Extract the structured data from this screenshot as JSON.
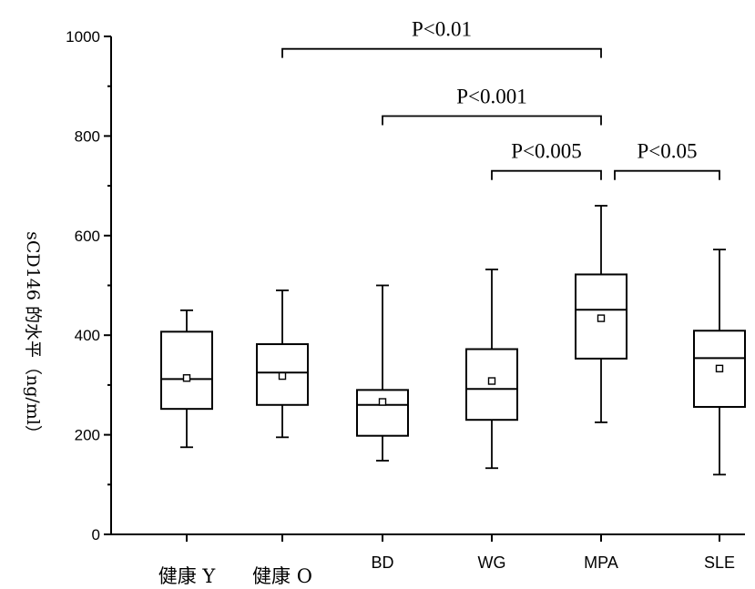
{
  "chart_data": {
    "type": "box",
    "title": "",
    "xlabel": "",
    "ylabel": "sCD146 的水平（ng/ml）",
    "ylim": [
      0,
      1000
    ],
    "yticks": [
      "0",
      "200",
      "400",
      "600",
      "800",
      "1000"
    ],
    "grid": false,
    "categories": [
      "健康 Y",
      "健康 O",
      "BD",
      "WG",
      "MPA",
      "SLE"
    ],
    "boxes": [
      {
        "category": "健康 Y",
        "min": 175,
        "q1": 252,
        "median": 312,
        "q3": 407,
        "max": 450,
        "mean": 314
      },
      {
        "category": "健康 O",
        "min": 195,
        "q1": 260,
        "median": 325,
        "q3": 382,
        "max": 490,
        "mean": 318
      },
      {
        "category": "BD",
        "min": 148,
        "q1": 198,
        "median": 260,
        "q3": 290,
        "max": 500,
        "mean": 266
      },
      {
        "category": "WG",
        "min": 133,
        "q1": 230,
        "median": 292,
        "q3": 372,
        "max": 532,
        "mean": 308
      },
      {
        "category": "MPA",
        "min": 225,
        "q1": 353,
        "median": 451,
        "q3": 522,
        "max": 660,
        "mean": 434
      },
      {
        "category": "SLE",
        "min": 120,
        "q1": 256,
        "median": 354,
        "q3": 409,
        "max": 572,
        "mean": 333
      }
    ],
    "significance": [
      {
        "from": "健康 O",
        "to": "MPA",
        "label": "P<0.01",
        "y": 975
      },
      {
        "from": "BD",
        "to": "MPA",
        "label": "P<0.001",
        "y": 840
      },
      {
        "from": "WG",
        "to": "MPA",
        "label": "P<0.005",
        "y": 730
      },
      {
        "from": "MPA",
        "to": "SLE",
        "label": "P<0.05",
        "y": 730
      }
    ]
  }
}
